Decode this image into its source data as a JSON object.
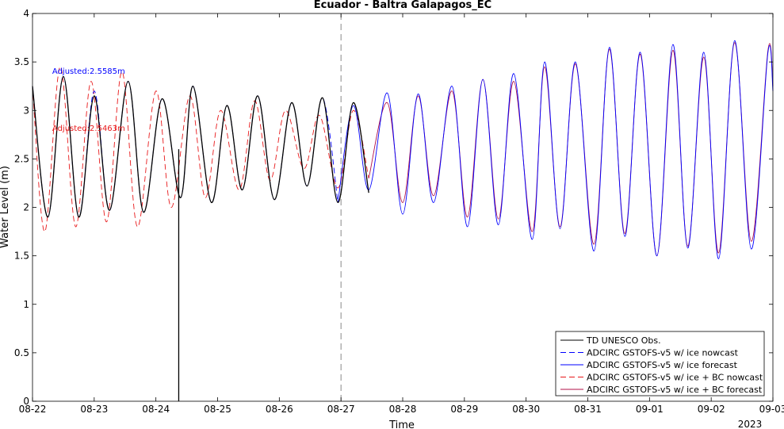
{
  "chart_data": {
    "type": "line",
    "title": "Ecuador - Baltra Galapagos_EC",
    "xlabel": "Time",
    "ylabel": "Water Level (m)",
    "year_label": "2023",
    "x_ticks": [
      "08-22",
      "08-23",
      "08-24",
      "08-25",
      "08-26",
      "08-27",
      "08-28",
      "08-29",
      "08-30",
      "08-31",
      "09-01",
      "09-02",
      "09-03"
    ],
    "y_ticks": [
      "0",
      "0.5",
      "1",
      "1.5",
      "2",
      "2.5",
      "3",
      "3.5",
      "4"
    ],
    "xlim_days": [
      0,
      12
    ],
    "ylim": [
      0,
      4
    ],
    "nowcast_end_day": 5,
    "annotations": [
      {
        "text": "Adjusted:2.5585m",
        "color": "#0000ff",
        "x_day": 0.32,
        "y": 3.38
      },
      {
        "text": "Adjusted:2.5463m",
        "color": "#e8181a",
        "x_day": 0.32,
        "y": 2.79
      }
    ],
    "legend": {
      "position": "bottom-right",
      "entries": [
        {
          "label": "TD UNESCO Obs.",
          "color": "#000000",
          "dash": "solid"
        },
        {
          "label": "ADCIRC GSTOFS-v5 w/ ice nowcast",
          "color": "#0000ff",
          "dash": "dashed"
        },
        {
          "label": "ADCIRC GSTOFS-v5 w/ ice forecast",
          "color": "#0000ff",
          "dash": "solid"
        },
        {
          "label": "ADCIRC GSTOFS-v5 w/ ice + BC nowcast",
          "color": "#e8181a",
          "dash": "dashed"
        },
        {
          "label": "ADCIRC GSTOFS-v5 w/ ice + BC forecast",
          "color": "#b0104a",
          "dash": "solid"
        }
      ]
    },
    "series": [
      {
        "name": "TD UNESCO Obs.",
        "color": "#000000",
        "style": "solid",
        "points": [
          [
            0.0,
            3.25
          ],
          [
            0.25,
            1.9
          ],
          [
            0.5,
            3.35
          ],
          [
            0.75,
            1.9
          ],
          [
            1.0,
            3.15
          ],
          [
            1.25,
            1.97
          ],
          [
            1.55,
            3.3
          ],
          [
            1.8,
            1.95
          ],
          [
            2.1,
            3.12
          ],
          [
            2.4,
            2.1
          ],
          [
            2.6,
            3.25
          ],
          [
            2.9,
            2.05
          ],
          [
            3.15,
            3.05
          ],
          [
            3.4,
            2.18
          ],
          [
            3.65,
            3.15
          ],
          [
            3.92,
            2.08
          ],
          [
            4.2,
            3.08
          ],
          [
            4.45,
            2.22
          ],
          [
            4.7,
            3.13
          ],
          [
            4.95,
            2.05
          ],
          [
            5.2,
            3.08
          ],
          [
            5.45,
            2.15
          ]
        ]
      },
      {
        "name": "ADCIRC GSTOFS-v5 w/ ice nowcast",
        "color": "#0000ff",
        "style": "dashed",
        "points": [
          [
            0.0,
            3.25
          ],
          [
            0.25,
            1.9
          ],
          [
            0.5,
            3.35
          ],
          [
            0.75,
            1.9
          ],
          [
            1.0,
            3.2
          ],
          [
            1.25,
            1.97
          ],
          [
            1.55,
            3.3
          ],
          [
            1.8,
            1.95
          ],
          [
            2.1,
            3.12
          ],
          [
            2.4,
            2.1
          ],
          [
            2.6,
            3.25
          ],
          [
            2.9,
            2.05
          ],
          [
            3.15,
            3.05
          ],
          [
            3.4,
            2.18
          ],
          [
            3.65,
            3.15
          ],
          [
            3.92,
            2.08
          ],
          [
            4.2,
            3.08
          ],
          [
            4.45,
            2.22
          ],
          [
            4.7,
            3.13
          ],
          [
            4.95,
            2.05
          ]
        ]
      },
      {
        "name": "ADCIRC GSTOFS-v5 w/ ice forecast",
        "color": "#0000ff",
        "style": "solid",
        "points": [
          [
            4.95,
            2.05
          ],
          [
            5.2,
            3.05
          ],
          [
            5.45,
            2.18
          ],
          [
            5.75,
            3.18
          ],
          [
            6.0,
            1.93
          ],
          [
            6.25,
            3.17
          ],
          [
            6.5,
            2.05
          ],
          [
            6.8,
            3.25
          ],
          [
            7.05,
            1.8
          ],
          [
            7.3,
            3.32
          ],
          [
            7.55,
            1.82
          ],
          [
            7.8,
            3.38
          ],
          [
            8.1,
            1.67
          ],
          [
            8.3,
            3.5
          ],
          [
            8.55,
            1.78
          ],
          [
            8.8,
            3.5
          ],
          [
            9.1,
            1.55
          ],
          [
            9.35,
            3.65
          ],
          [
            9.6,
            1.7
          ],
          [
            9.85,
            3.6
          ],
          [
            10.12,
            1.5
          ],
          [
            10.38,
            3.68
          ],
          [
            10.62,
            1.58
          ],
          [
            10.88,
            3.6
          ],
          [
            11.12,
            1.47
          ],
          [
            11.38,
            3.72
          ],
          [
            11.65,
            1.57
          ],
          [
            11.92,
            3.6
          ],
          [
            12.0,
            3.2
          ]
        ]
      },
      {
        "name": "ADCIRC GSTOFS-v5 w/ ice + BC nowcast",
        "color": "#e8181a",
        "style": "dashed",
        "points": [
          [
            0.0,
            3.25
          ],
          [
            0.2,
            1.75
          ],
          [
            0.45,
            3.45
          ],
          [
            0.7,
            1.8
          ],
          [
            0.95,
            3.3
          ],
          [
            1.2,
            1.85
          ],
          [
            1.45,
            3.4
          ],
          [
            1.7,
            1.8
          ],
          [
            2.0,
            3.2
          ],
          [
            2.25,
            2.0
          ],
          [
            2.55,
            3.15
          ],
          [
            2.8,
            2.1
          ],
          [
            3.05,
            3.0
          ],
          [
            3.35,
            2.18
          ],
          [
            3.6,
            3.1
          ],
          [
            3.85,
            2.28
          ],
          [
            4.1,
            3.0
          ],
          [
            4.4,
            2.4
          ],
          [
            4.65,
            2.95
          ],
          [
            4.95,
            2.2
          ],
          [
            5.2,
            3.0
          ],
          [
            5.45,
            2.3
          ]
        ]
      },
      {
        "name": "ADCIRC GSTOFS-v5 w/ ice + BC forecast",
        "color": "#b0104a",
        "style": "solid",
        "points": [
          [
            5.45,
            2.3
          ],
          [
            5.75,
            3.08
          ],
          [
            6.0,
            2.05
          ],
          [
            6.25,
            3.15
          ],
          [
            6.5,
            2.12
          ],
          [
            6.8,
            3.2
          ],
          [
            7.05,
            1.9
          ],
          [
            7.3,
            3.32
          ],
          [
            7.55,
            1.88
          ],
          [
            7.8,
            3.3
          ],
          [
            8.1,
            1.75
          ],
          [
            8.3,
            3.45
          ],
          [
            8.55,
            1.8
          ],
          [
            8.8,
            3.48
          ],
          [
            9.1,
            1.62
          ],
          [
            9.35,
            3.63
          ],
          [
            9.6,
            1.73
          ],
          [
            9.85,
            3.58
          ],
          [
            10.12,
            1.5
          ],
          [
            10.38,
            3.62
          ],
          [
            10.62,
            1.6
          ],
          [
            10.88,
            3.55
          ],
          [
            11.12,
            1.53
          ],
          [
            11.38,
            3.7
          ],
          [
            11.65,
            1.65
          ],
          [
            11.92,
            3.62
          ],
          [
            12.0,
            3.25
          ]
        ]
      }
    ]
  }
}
